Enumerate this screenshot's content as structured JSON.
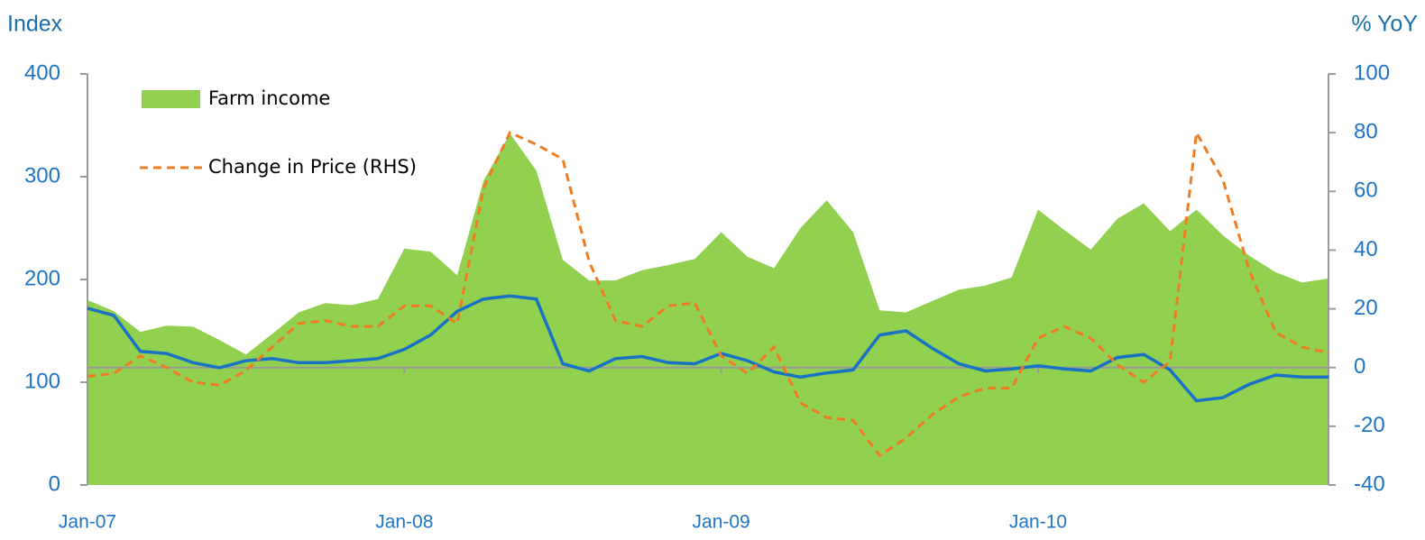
{
  "chart_data": {
    "type": "area-line",
    "y_label": "Index",
    "y2_label": "% YoY",
    "categories": [
      "Jan-07",
      null,
      null,
      null,
      null,
      null,
      null,
      null,
      null,
      null,
      null,
      null,
      "Jan-08",
      null,
      null,
      null,
      null,
      null,
      null,
      null,
      null,
      null,
      null,
      null,
      "Jan-09",
      null,
      null,
      null,
      null,
      null,
      null,
      null,
      null,
      null,
      null,
      null,
      "Jan-10",
      null,
      null,
      null,
      null,
      null,
      null,
      null,
      null,
      null,
      null,
      null
    ],
    "ylim": [
      0,
      400
    ],
    "yticks": [
      0,
      100,
      200,
      300,
      400
    ],
    "y2lim": [
      -40,
      100
    ],
    "y2ticks": [
      -40,
      -20,
      0,
      20,
      40,
      60,
      80,
      100
    ],
    "legend": "upper left",
    "series": [
      {
        "name": "Farm income",
        "kind": "area",
        "color": "#92d050",
        "values": [
          180,
          169,
          149,
          155,
          154,
          141,
          127,
          147,
          168,
          177,
          175,
          181,
          230,
          227,
          204,
          296,
          342,
          306,
          219,
          199,
          199,
          209,
          214,
          220,
          246,
          222,
          211,
          250,
          277,
          246,
          170,
          168,
          179,
          190,
          194,
          202,
          268,
          248,
          229,
          259,
          274,
          247,
          268,
          243,
          223,
          207,
          197,
          201
        ]
      },
      {
        "kind": "line",
        "color": "#1a72c4",
        "values": [
          172,
          165,
          130,
          128,
          119,
          114,
          121,
          123,
          119,
          119,
          121,
          123,
          132,
          146,
          169,
          181,
          184,
          181,
          118,
          111,
          123,
          125,
          119,
          118,
          128,
          121,
          110,
          105,
          109,
          112,
          146,
          150,
          133,
          118,
          111,
          113,
          116,
          113,
          111,
          124,
          127,
          112,
          82,
          85,
          98,
          107,
          105,
          105
        ]
      },
      {
        "name": "Change in Price (RHS)",
        "kind": "dashed",
        "axis": "y2",
        "color": "#f07c22",
        "values": [
          -3,
          -2,
          4,
          0,
          -5,
          -6,
          -1,
          7,
          15,
          16,
          14,
          14,
          21,
          21,
          15,
          61,
          80,
          76,
          71,
          36,
          16,
          14,
          21,
          22,
          4,
          -2,
          7,
          -12,
          -17,
          -18,
          -30,
          -24,
          -16,
          -10,
          -7,
          -7,
          10,
          14,
          10,
          1,
          -5,
          2,
          80,
          64,
          33,
          12,
          7,
          5
        ]
      }
    ]
  }
}
